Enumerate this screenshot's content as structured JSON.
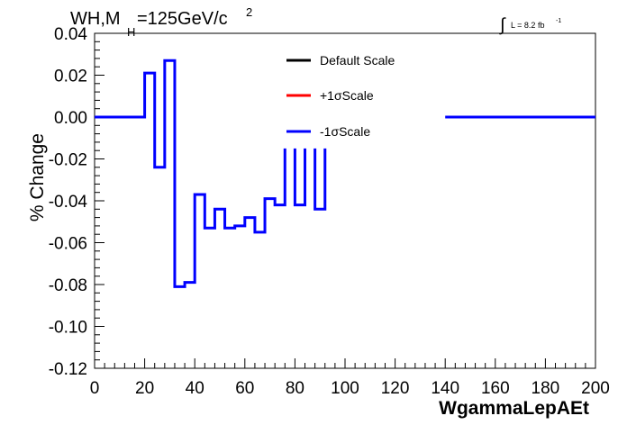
{
  "chart_data": {
    "type": "line",
    "title_main": "WH,M",
    "title_sub": "H",
    "title_rest": "=125GeV/c",
    "title_sup": "2",
    "lumi_symbol": "∫",
    "lumi_text": "L = 8.2 fb",
    "lumi_sup": "-1",
    "xlabel": "WgammaLepAEt",
    "ylabel": "% Change",
    "xlim": [
      0,
      200
    ],
    "ylim": [
      -0.12,
      0.04
    ],
    "x_ticks": [
      "0",
      "20",
      "40",
      "60",
      "80",
      "100",
      "120",
      "140",
      "160",
      "180",
      "200"
    ],
    "y_ticks": [
      "0.04",
      "0.02",
      "0.00",
      "-0.02",
      "-0.04",
      "-0.06",
      "-0.08",
      "-0.10",
      "-0.12"
    ],
    "legend": [
      {
        "label": "Default Scale",
        "color": "#000000"
      },
      {
        "label": "+1σScale",
        "color": "#ff0000"
      },
      {
        "label": "-1σScale",
        "color": "#0000ff"
      }
    ],
    "bin_edges": [
      0,
      20,
      24,
      28,
      32,
      36,
      40,
      44,
      48,
      52,
      56,
      60,
      64,
      68,
      72,
      76,
      80,
      84,
      88,
      92,
      96,
      100,
      104,
      108,
      112,
      116,
      120,
      124,
      128,
      132,
      136,
      140,
      144,
      148,
      152,
      156,
      160,
      164,
      168,
      172,
      176,
      180,
      184,
      188,
      192,
      196,
      200
    ],
    "series": [
      {
        "name": "-1σScale",
        "color": "#0000ff",
        "values": [
          0.0,
          0.021,
          -0.024,
          0.027,
          -0.081,
          -0.079,
          -0.037,
          -0.053,
          -0.044,
          -0.053,
          -0.052,
          -0.048,
          -0.055,
          -0.039,
          -0.042,
          null,
          -0.042,
          null,
          -0.044,
          null,
          null,
          null,
          null,
          null,
          null,
          null,
          null,
          null,
          null,
          null,
          null,
          0.0,
          0.0,
          0.0,
          0.0,
          0.0,
          0.0,
          0.0,
          0.0,
          0.0,
          0.0,
          0.0,
          0.0,
          0.0,
          0.0,
          0.0
        ]
      }
    ]
  }
}
